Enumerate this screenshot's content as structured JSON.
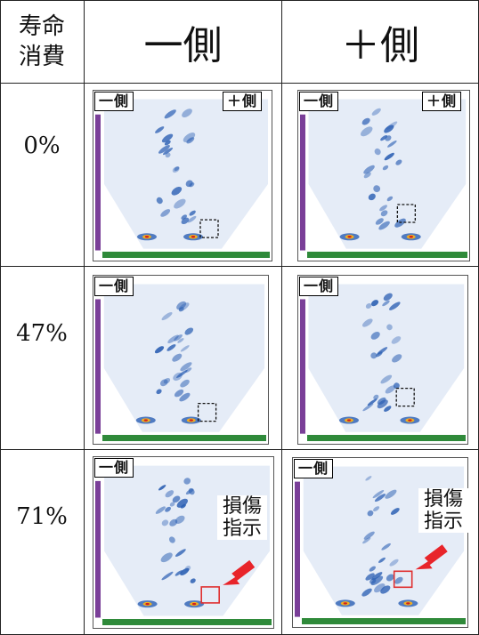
{
  "header": {
    "life_line1": "寿命",
    "life_line2": "消費",
    "minus_side": "一側",
    "plus_side": "＋側"
  },
  "rows": [
    {
      "life": "0%"
    },
    {
      "life": "47%"
    },
    {
      "life": "71%"
    }
  ],
  "tags": {
    "minus": "一側",
    "plus": "＋側"
  },
  "damage": {
    "line1": "損傷",
    "line2": "指示"
  },
  "colors": {
    "scan_blue": "#2b5fb3",
    "scan_light": "#cfdcf0",
    "purple_scale": "#7a3f98",
    "green_axis": "#2f8a3a",
    "damage_box": "#e03030",
    "arrow": "#e8242a"
  }
}
